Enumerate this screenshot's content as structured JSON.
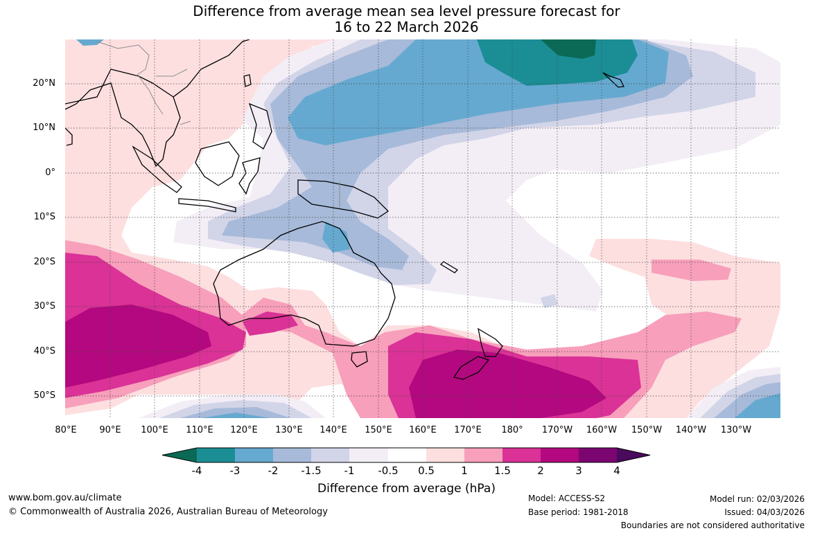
{
  "title": {
    "line1": "Difference from average mean sea level pressure forecast for",
    "line2": "16 to 22 March 2026"
  },
  "axes": {
    "y_labels": [
      "20°N",
      "10°N",
      "0°",
      "10°S",
      "20°S",
      "30°S",
      "40°S",
      "50°S"
    ],
    "x_labels": [
      "80°E",
      "90°E",
      "100°E",
      "110°E",
      "120°E",
      "130°E",
      "140°E",
      "150°E",
      "160°E",
      "170°E",
      "180°",
      "170°W",
      "160°W",
      "150°W",
      "140°W",
      "130°W"
    ],
    "lon_range": [
      80,
      240
    ],
    "lat_range": [
      -55,
      30
    ]
  },
  "colorbar": {
    "title": "Difference from average (hPa)",
    "ticks": [
      "-4",
      "-3",
      "-2",
      "-1.5",
      "-1",
      "-0.5",
      "0.5",
      "1",
      "1.5",
      "2",
      "3",
      "4"
    ],
    "colors": {
      "lt_minus4": "#0b6a55",
      "m4_m3": "#1b8e95",
      "m3_m2": "#66a9d0",
      "m2_m15": "#a7bad9",
      "m15_m1": "#d2d4e8",
      "m1_m05": "#f3eef6",
      "m05_05": "#ffffff",
      "p05_1": "#fddfe0",
      "p1_15": "#f79fbb",
      "p15_2": "#da3296",
      "p2_3": "#b3087f",
      "p3_4": "#7b0672",
      "gt_4": "#4a0a5e"
    }
  },
  "footer": {
    "url": "www.bom.gov.au/climate",
    "copyright": "© Commonwealth of Australia 2026, Australian Bureau of Meteorology",
    "model": "Model: ACCESS-S2",
    "base_period": "Base period: 1981-2018",
    "model_run": "Model run: 02/03/2026",
    "issued": "Issued: 04/03/2026",
    "disclaimer": "Boundaries are not considered authoritative"
  }
}
